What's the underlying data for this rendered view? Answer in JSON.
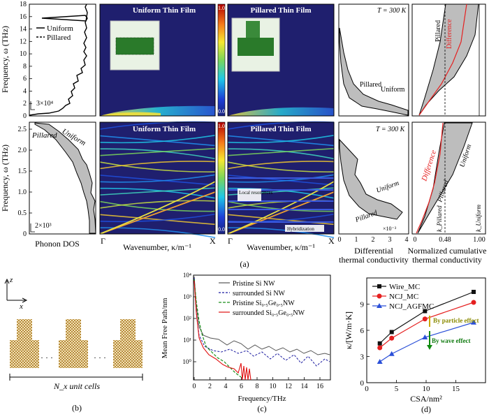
{
  "figure_a": {
    "label": "(a)",
    "dos_ylabel": "Frequency, ω (THz)",
    "dos_xlabel": "Phonon DOS",
    "legend_uniform": "Uniform",
    "legend_pillared": "Pillared",
    "top_scale_note": "3×10⁴",
    "bottom_scale_note": "2×10³",
    "top_yticks": [
      "0",
      "2",
      "4",
      "6",
      "8",
      "10",
      "12",
      "14",
      "16",
      "18"
    ],
    "bottom_yticks": [
      "0",
      "0.5",
      "1.0",
      "1.5",
      "2.0",
      "2.5"
    ],
    "uniform_film_title": "Uniform Thin Film",
    "pillared_film_title": "Pillared Thin Film",
    "colorbar_max": "1.0",
    "colorbar_min": "0.0",
    "gamma": "Γ",
    "x_point": "X",
    "wavenumber_label": "Wavenumber, κ/m⁻¹",
    "local_resonances": "Local resonances",
    "hybridization": "Hybridization",
    "temperature": "T = 300 K",
    "pillared": "Pillared",
    "uniform": "Uniform",
    "differential_xticks": [
      "0",
      "1",
      "2",
      "3",
      "4"
    ],
    "differential_scale": "×10⁻³",
    "differential_xlabel_1": "Differential",
    "differential_xlabel_2": "thermal conductivity",
    "difference": "Difference",
    "cum_xticks": [
      "0",
      "0.48",
      "1.00"
    ],
    "k_pillared": "k_Pillared",
    "k_uniform": "k_Uniform",
    "cum_xlabel_1": "Normalized cumulative",
    "cum_xlabel_2": "thermal conductivity"
  },
  "figure_b": {
    "label": "(b)",
    "axis_z": "z",
    "axis_x": "x",
    "dots": "· · ·",
    "caption": "N_x unit cells"
  },
  "figure_c": {
    "label": "(c)",
    "ylabel": "Mean Free Path/nm",
    "xlabel": "Frequency/THz",
    "xticks": [
      "0",
      "2",
      "4",
      "6",
      "8",
      "10",
      "12",
      "14",
      "16"
    ],
    "yticks": [
      "10⁰",
      "10¹",
      "10²",
      "10³",
      "10⁴"
    ],
    "legend": [
      {
        "text": "Pristine Si NW",
        "color": "#555555",
        "dash": "none"
      },
      {
        "text": "surrounded Si NW",
        "color": "#1a1aa0",
        "dash": "3,2"
      },
      {
        "text": "Pristine Si₀.₅Ge₀.₅NW",
        "color": "#1a8f1a",
        "dash": "4,2"
      },
      {
        "text": "surrounded Si₀.₅Ge₀.₅NW",
        "color": "#e01010",
        "dash": "none"
      }
    ]
  },
  "figure_d": {
    "label": "(d)",
    "ylabel": "κ/[W/m·K]",
    "xlabel": "CSA/nm²",
    "by_particle": "By particle effect",
    "by_wave": "By wave effect"
  },
  "chart_data": {
    "type": "line",
    "xlabel": "CSA/nm²",
    "ylabel": "κ/[W/m·K]",
    "xlim": [
      0,
      20
    ],
    "ylim": [
      0,
      12
    ],
    "xticks": [
      0,
      5,
      10,
      15
    ],
    "yticks": [
      0,
      3,
      6,
      9
    ],
    "series": [
      {
        "name": "Wire_MC",
        "color": "#111111",
        "marker": "square",
        "x": [
          2.2,
          4.2,
          9.8,
          18
        ],
        "y": [
          4.5,
          5.8,
          8.2,
          10.4
        ]
      },
      {
        "name": "NCJ_MC",
        "color": "#e52020",
        "marker": "circle",
        "x": [
          2.2,
          4.2,
          9.8,
          18
        ],
        "y": [
          4.0,
          5.1,
          7.3,
          9.2
        ]
      },
      {
        "name": "NCJ_AGFMC",
        "color": "#2a4fd8",
        "marker": "triangle",
        "x": [
          2.2,
          4.2,
          9.8,
          18
        ],
        "y": [
          2.4,
          3.3,
          5.2,
          6.9
        ]
      }
    ]
  }
}
